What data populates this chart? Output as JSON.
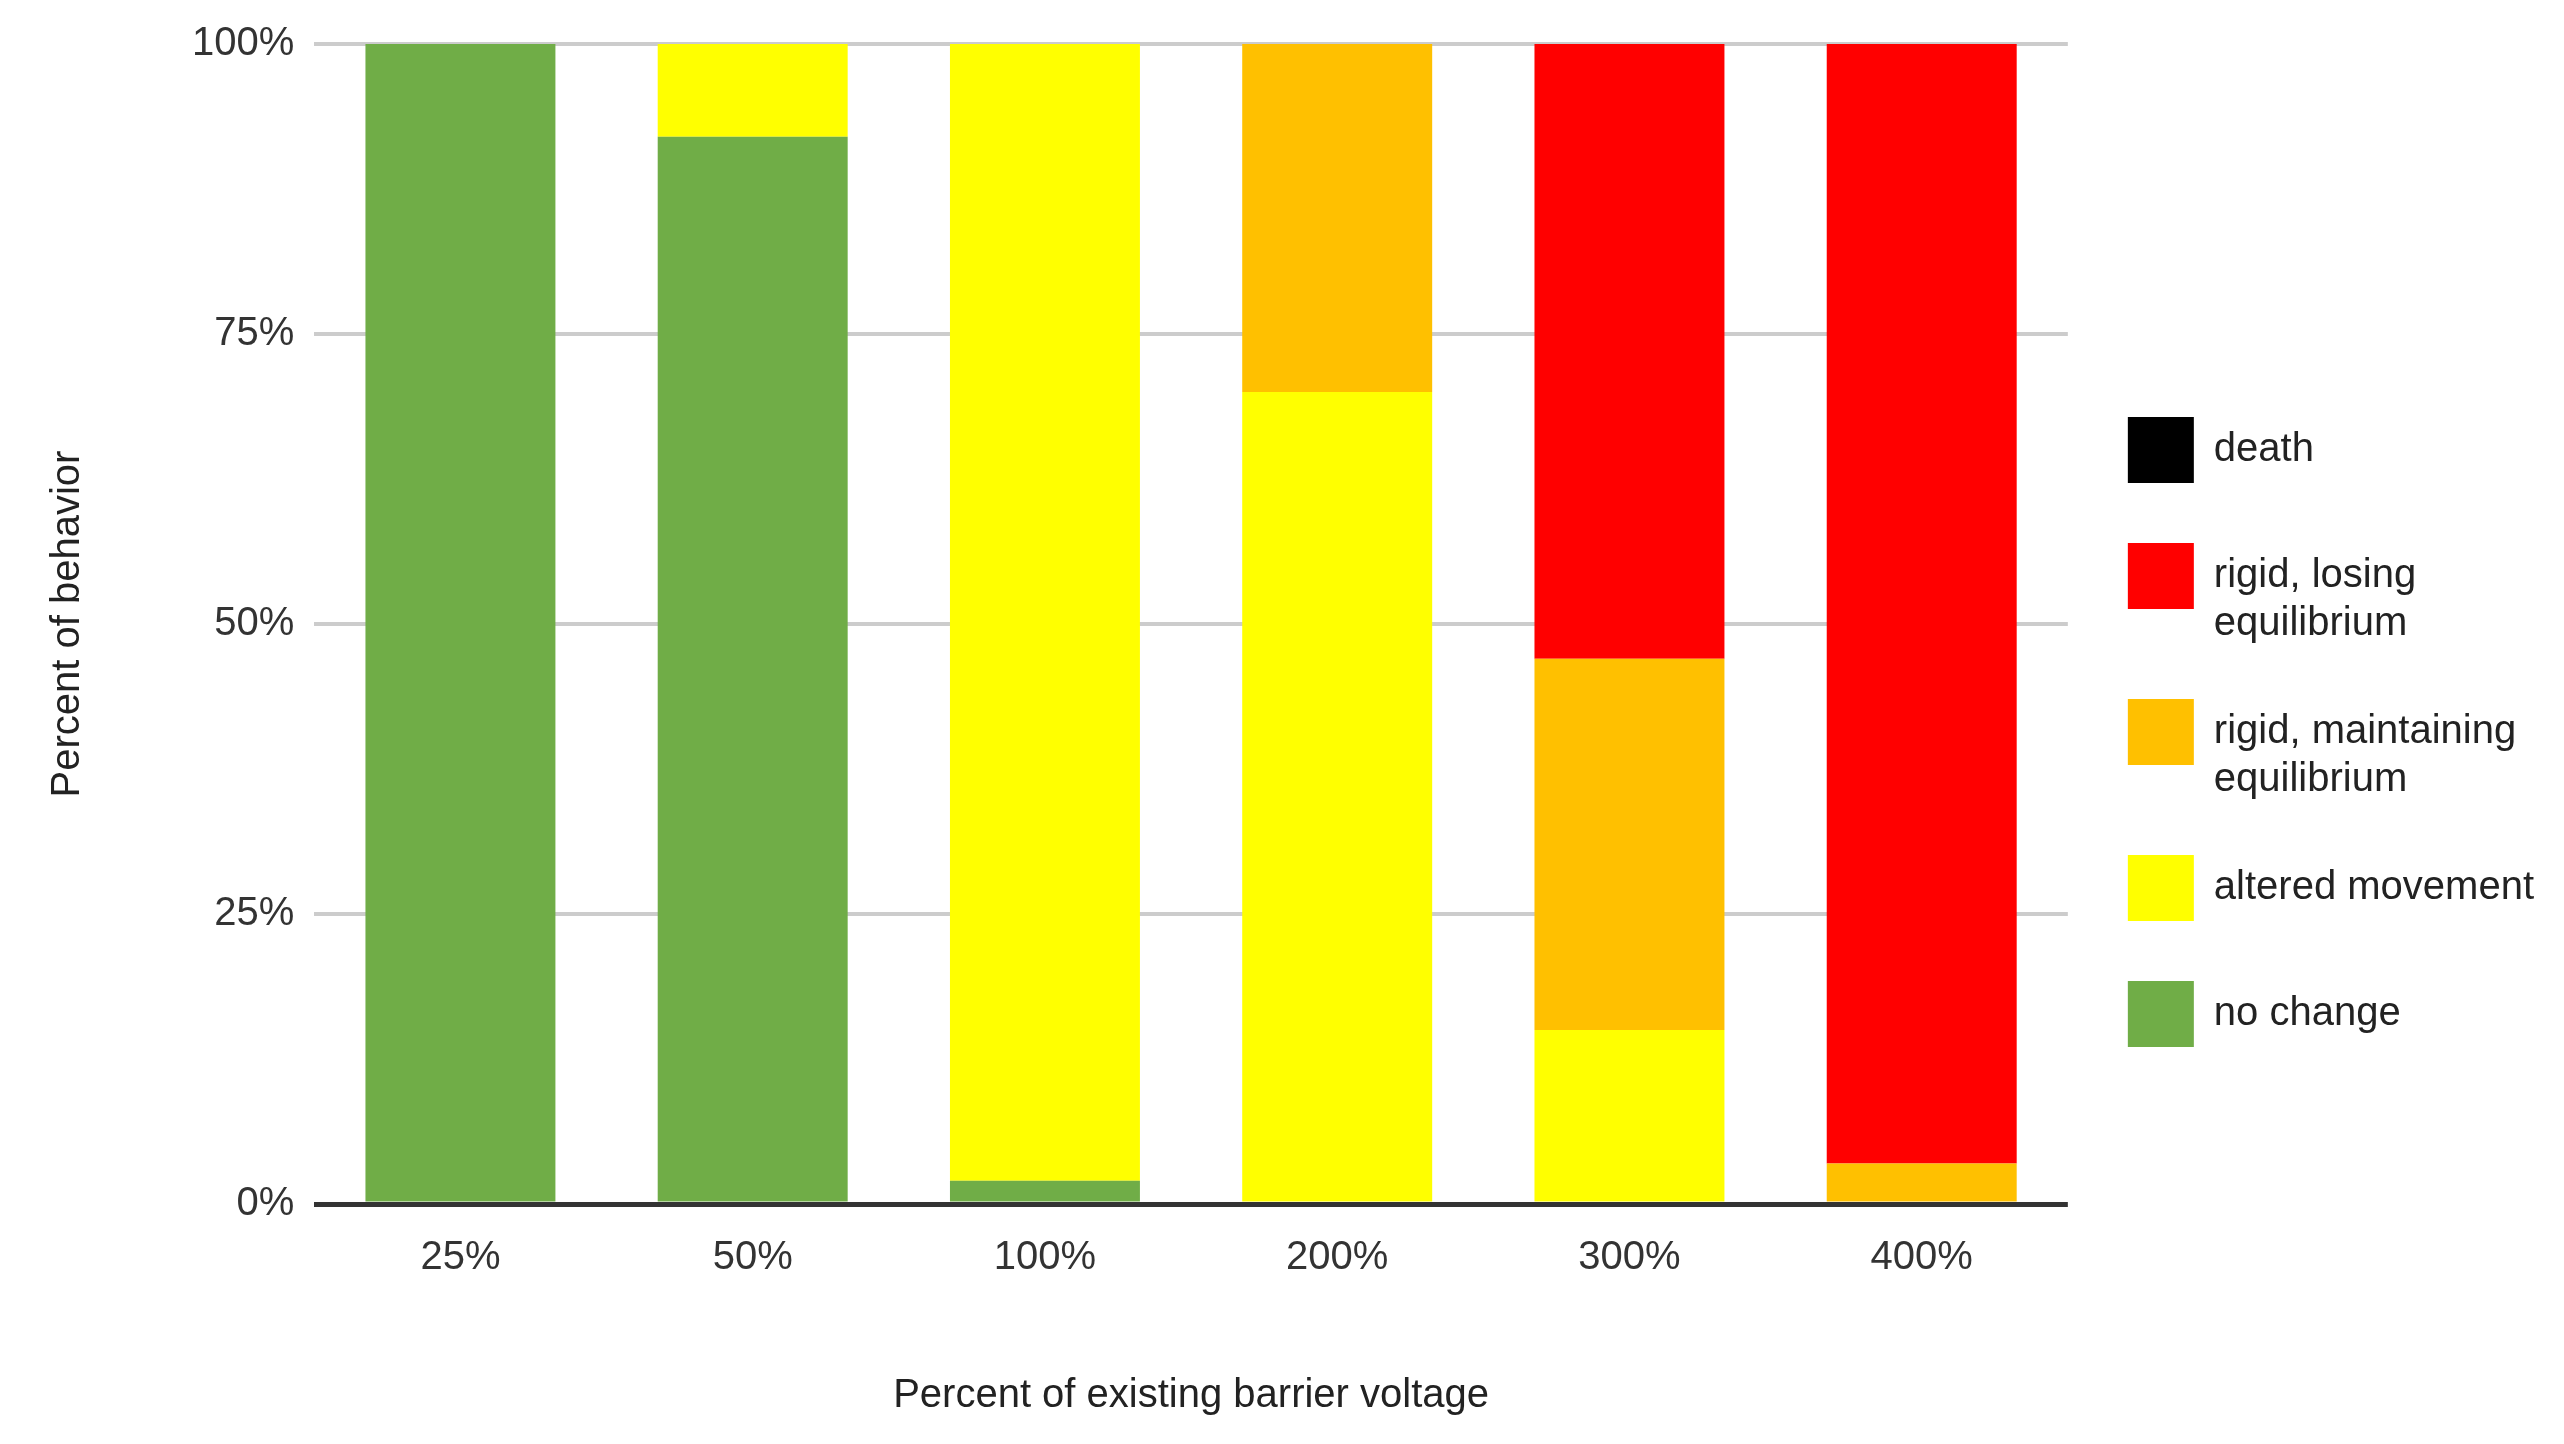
{
  "chart_data": {
    "type": "bar",
    "stacked": true,
    "xlabel": "Percent of existing barrier voltage",
    "ylabel": "Percent of behavior",
    "categories": [
      "25%",
      "50%",
      "100%",
      "200%",
      "300%",
      "400%"
    ],
    "series": [
      {
        "name": "no change",
        "color": "#70ad47",
        "values": [
          100,
          92,
          2,
          0,
          0,
          0
        ]
      },
      {
        "name": "altered movement",
        "color": "#ffff00",
        "values": [
          0,
          8,
          98,
          70,
          15,
          0
        ]
      },
      {
        "name": "rigid, maintaining equilibrium",
        "color": "#ffc000",
        "values": [
          0,
          0,
          0,
          30,
          32,
          3.5
        ]
      },
      {
        "name": "rigid, losing equilibrium",
        "color": "#ff0000",
        "values": [
          0,
          0,
          0,
          0,
          53,
          96.5
        ]
      },
      {
        "name": "death",
        "color": "#000000",
        "values": [
          0,
          0,
          0,
          0,
          0,
          0
        ]
      }
    ],
    "ylim": [
      0,
      100
    ],
    "yticks": [
      {
        "value": 0,
        "label": "0%"
      },
      {
        "value": 25,
        "label": "25%"
      },
      {
        "value": 50,
        "label": "50%"
      },
      {
        "value": 75,
        "label": "75%"
      },
      {
        "value": 100,
        "label": "100%"
      }
    ],
    "grid": "y",
    "legend": "right"
  }
}
